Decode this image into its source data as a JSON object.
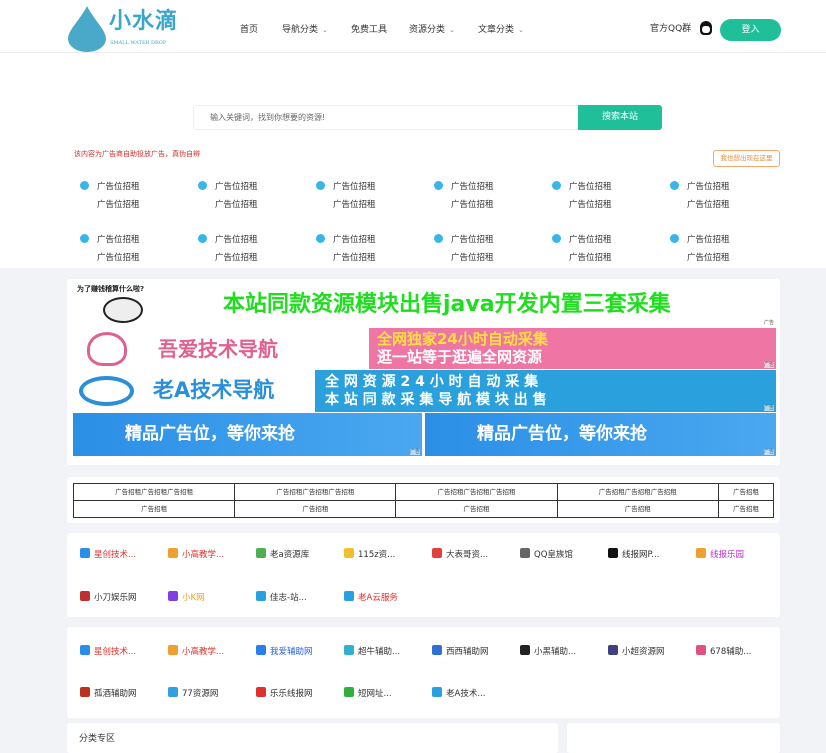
{
  "header": {
    "logo_text": "小水滴",
    "logo_sub": "SMALL WATER DROP",
    "nav": [
      {
        "label": "首页",
        "dropdown": false
      },
      {
        "label": "导航分类",
        "dropdown": true
      },
      {
        "label": "免费工具",
        "dropdown": false
      },
      {
        "label": "资源分类",
        "dropdown": true
      },
      {
        "label": "文章分类",
        "dropdown": true
      }
    ],
    "qq_group": "官方QQ群",
    "login": "登入"
  },
  "search": {
    "placeholder": "输入关键词，找到你想要的资源!",
    "button": "搜索本站"
  },
  "ad_notice": "该内容为广告商自助投放广告，真伪自辨",
  "ad_button": "我也想出现在这里",
  "ad_grid": [
    [
      "广告位招租",
      "广告位招租"
    ],
    [
      "广告位招租",
      "广告位招租"
    ],
    [
      "广告位招租",
      "广告位招租"
    ],
    [
      "广告位招租",
      "广告位招租"
    ],
    [
      "广告位招租",
      "广告位招租"
    ],
    [
      "广告位招租",
      "广告位招租"
    ],
    [
      "广告位招租",
      "广告位招租"
    ],
    [
      "广告位招租",
      "广告位招租"
    ],
    [
      "广告位招租",
      "广告位招租"
    ],
    [
      "广告位招租",
      "广告位招租"
    ],
    [
      "广告位招租",
      "广告位招租"
    ],
    [
      "广告位招租",
      "广告位招租"
    ]
  ],
  "banners": {
    "b1_caption": "为了赚钱稽算什么啦?",
    "b1_text": "本站同款资源模块出售java开发内置三套采集",
    "b2_left": "吾爱技术导航",
    "b2_right1": "全网独家24小时自动采集",
    "b2_right2": "逛一站等于逛遍全网资源",
    "b3_left": "老A技术导航",
    "b3_right1": "全 网 资 源 2 4 小 时 自 动 采 集",
    "b3_right2": "本 站 同 款 采 集 导 航 模 块 出 售",
    "b4": "精品广告位，等你来抢",
    "b5": "精品广告位，等你来抢",
    "tag": "广告"
  },
  "text_table": [
    [
      "广告招租广告招租广告招租",
      "广告招租广告招租广告招租",
      "广告招租广告招租广告招租",
      "广告招租广告招租广告招租",
      "广告招租"
    ],
    [
      "广告招租",
      "广告招租",
      "广告招租",
      "广告招租",
      "广告招租"
    ]
  ],
  "links1": [
    {
      "label": "星创技术...",
      "color": "#e0302c",
      "icon": "#2a8ee8"
    },
    {
      "label": "小高教学...",
      "color": "#e0302c",
      "icon": "#f0a030"
    },
    {
      "label": "老a资源库",
      "color": "#333",
      "icon": "#4cb050"
    },
    {
      "label": "115z资...",
      "color": "#333",
      "icon": "#f0c030"
    },
    {
      "label": "大表哥资...",
      "color": "#333",
      "icon": "#e04040"
    },
    {
      "label": "QQ皇族馆",
      "color": "#333",
      "icon": "#666"
    },
    {
      "label": "线报网P...",
      "color": "#333",
      "icon": "#111"
    },
    {
      "label": "线报乐园",
      "color": "#c030d0",
      "icon": "#f0a030"
    },
    {
      "label": "小刀娱乐网",
      "color": "#333",
      "icon": "#c03030"
    },
    {
      "label": "小K网",
      "color": "#f0a030",
      "icon": "#8040e0"
    },
    {
      "label": "佳志-站...",
      "color": "#333",
      "icon": "#2aa0e0"
    },
    {
      "label": "老A云服务",
      "color": "#e0302c",
      "icon": "#2aa0e0"
    }
  ],
  "links2": [
    {
      "label": "星创技术...",
      "color": "#e0302c",
      "icon": "#2a8ee8"
    },
    {
      "label": "小高教学...",
      "color": "#e0302c",
      "icon": "#f0a030"
    },
    {
      "label": "我爱辅助网",
      "color": "#2a5fe0",
      "icon": "#2a7ee8"
    },
    {
      "label": "超牛辅助...",
      "color": "#333",
      "icon": "#30b0d0"
    },
    {
      "label": "西西辅助网",
      "color": "#333",
      "icon": "#3070d0"
    },
    {
      "label": "小黑辅助...",
      "color": "#333",
      "icon": "#222"
    },
    {
      "label": "小超资源网",
      "color": "#333",
      "icon": "#404080"
    },
    {
      "label": "678辅助...",
      "color": "#333",
      "icon": "#e05080"
    },
    {
      "label": "孤酒辅助网",
      "color": "#333",
      "icon": "#c03020"
    },
    {
      "label": "77资源网",
      "color": "#333",
      "icon": "#30a0e0"
    },
    {
      "label": "乐乐线报网",
      "color": "#333",
      "icon": "#e03030"
    },
    {
      "label": "短网址...",
      "color": "#333",
      "icon": "#30b040"
    },
    {
      "label": "老A技术...",
      "color": "#333",
      "icon": "#2aa0e0"
    }
  ],
  "category_title": "分类专区"
}
